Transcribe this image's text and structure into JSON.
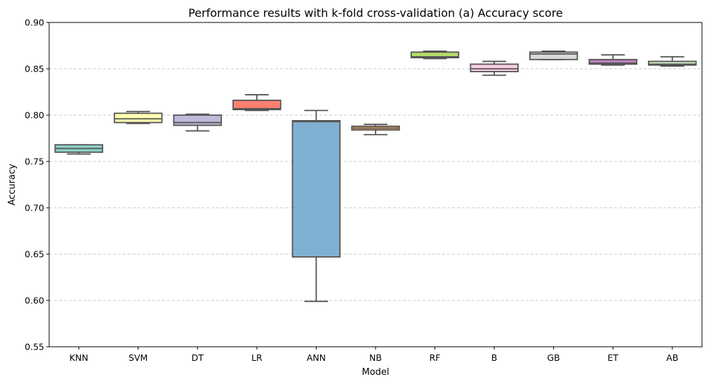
{
  "chart_data": {
    "type": "box",
    "title": "Performance results with k-fold cross-validation (a) Accuracy score",
    "xlabel": "Model",
    "ylabel": "Accuracy",
    "ylim": [
      0.55,
      0.9
    ],
    "yticks": [
      "0.55",
      "0.60",
      "0.65",
      "0.70",
      "0.75",
      "0.80",
      "0.85",
      "0.90"
    ],
    "grid": "horizontal-dashed",
    "categories": [
      "KNN",
      "SVM",
      "DT",
      "LR",
      "ANN",
      "NB",
      "RF",
      "B",
      "GB",
      "ET",
      "AB"
    ],
    "colors": [
      "#8dd3c7",
      "#ffffb3",
      "#bebada",
      "#fb8072",
      "#80b1d3",
      "#fdb462",
      "#b3de69",
      "#fccde5",
      "#d9d9d9",
      "#bc80bd",
      "#ccebc5"
    ],
    "boxes": [
      {
        "category": "KNN",
        "whisker_low": 0.758,
        "q1": 0.76,
        "median": 0.764,
        "q3": 0.768,
        "whisker_high": 0.768
      },
      {
        "category": "SVM",
        "whisker_low": 0.791,
        "q1": 0.792,
        "median": 0.796,
        "q3": 0.802,
        "whisker_high": 0.804
      },
      {
        "category": "DT",
        "whisker_low": 0.783,
        "q1": 0.789,
        "median": 0.792,
        "q3": 0.8,
        "whisker_high": 0.801
      },
      {
        "category": "LR",
        "whisker_low": 0.805,
        "q1": 0.806,
        "median": 0.807,
        "q3": 0.816,
        "whisker_high": 0.822
      },
      {
        "category": "ANN",
        "whisker_low": 0.599,
        "q1": 0.647,
        "median": 0.793,
        "q3": 0.794,
        "whisker_high": 0.805
      },
      {
        "category": "NB",
        "whisker_low": 0.779,
        "q1": 0.784,
        "median": 0.786,
        "q3": 0.788,
        "whisker_high": 0.79
      },
      {
        "category": "RF",
        "whisker_low": 0.861,
        "q1": 0.862,
        "median": 0.863,
        "q3": 0.868,
        "whisker_high": 0.869
      },
      {
        "category": "B",
        "whisker_low": 0.843,
        "q1": 0.847,
        "median": 0.85,
        "q3": 0.855,
        "whisker_high": 0.858
      },
      {
        "category": "GB",
        "whisker_low": 0.86,
        "q1": 0.86,
        "median": 0.866,
        "q3": 0.868,
        "whisker_high": 0.869
      },
      {
        "category": "ET",
        "whisker_low": 0.854,
        "q1": 0.855,
        "median": 0.856,
        "q3": 0.86,
        "whisker_high": 0.865
      },
      {
        "category": "AB",
        "whisker_low": 0.853,
        "q1": 0.854,
        "median": 0.855,
        "q3": 0.858,
        "whisker_high": 0.863
      }
    ]
  }
}
